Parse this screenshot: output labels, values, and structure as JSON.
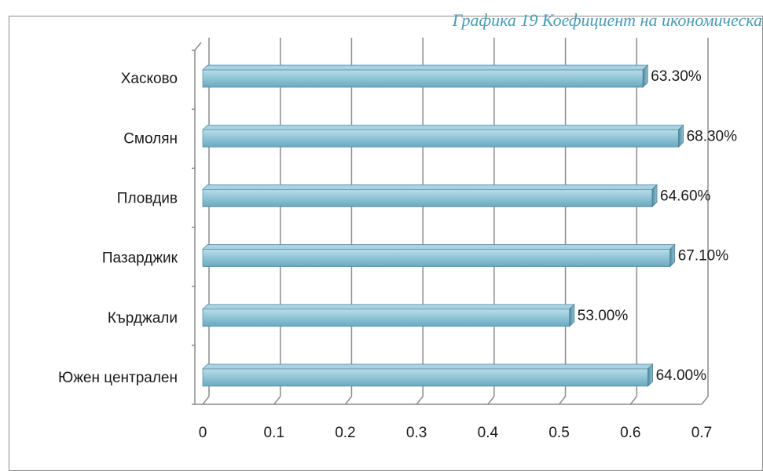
{
  "title": "Графика 19 Коефициент на икономическа",
  "chart_data": {
    "type": "bar",
    "orientation": "horizontal",
    "categories": [
      "Хасково",
      "Смолян",
      "Пловдив",
      "Пазарджик",
      "Кърджали",
      "Южен централен"
    ],
    "values": [
      0.633,
      0.683,
      0.646,
      0.671,
      0.53,
      0.64
    ],
    "data_labels": [
      "63.30%",
      "68.30%",
      "64.60%",
      "67.10%",
      "53.00%",
      "64.00%"
    ],
    "x_ticks": [
      "0",
      "0.1",
      "0.2",
      "0.3",
      "0.4",
      "0.5",
      "0.6",
      "0.7"
    ],
    "xlim": [
      0,
      0.7
    ],
    "grid": true,
    "bar_color": "#8fc3d6",
    "bar_edge_color": "#5f93a6"
  }
}
